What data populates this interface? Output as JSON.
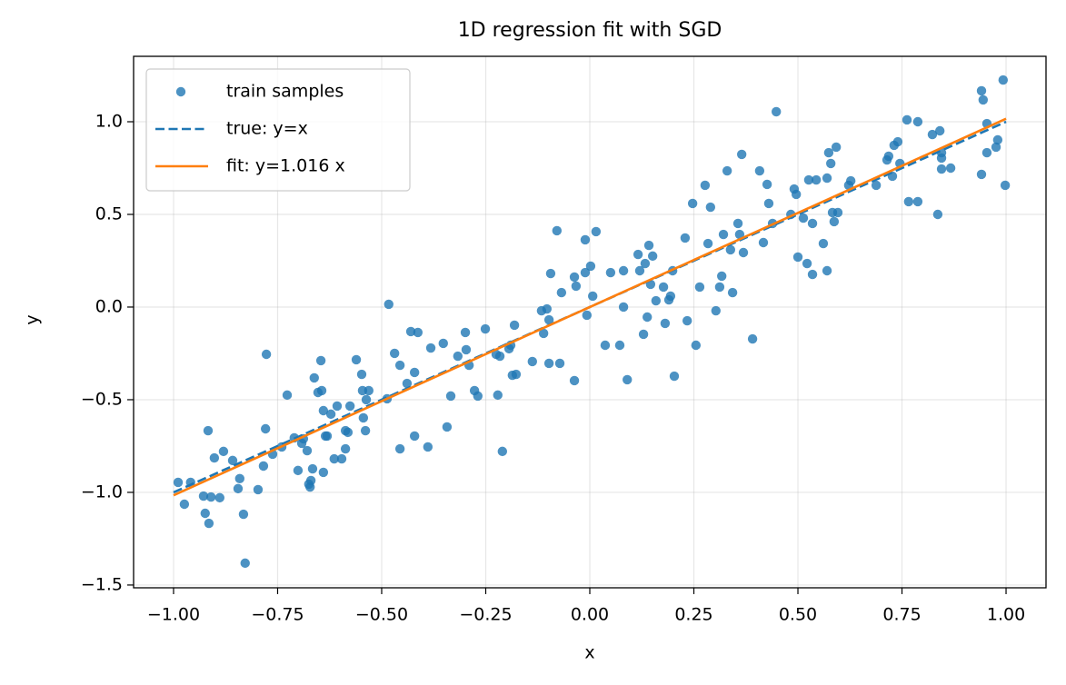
{
  "chart_data": {
    "type": "scatter",
    "title": "1D regression fit with SGD",
    "x_label": "x",
    "y_label": "y",
    "xlim": [
      -1.096,
      1.096
    ],
    "ylim": [
      -1.515,
      1.353
    ],
    "xticks": [
      {
        "value": -1,
        "label": "−1.00"
      },
      {
        "value": -0.75,
        "label": "−0.75"
      },
      {
        "value": -0.5,
        "label": "−0.50"
      },
      {
        "value": -0.25,
        "label": "−0.25"
      },
      {
        "value": 0,
        "label": "0.00"
      },
      {
        "value": 0.25,
        "label": "0.25"
      },
      {
        "value": 0.5,
        "label": "0.50"
      },
      {
        "value": 0.75,
        "label": "0.75"
      },
      {
        "value": 1,
        "label": "1.00"
      }
    ],
    "yticks": [
      {
        "value": -1.5,
        "label": "−1.5"
      },
      {
        "value": -1,
        "label": "−1.0"
      },
      {
        "value": -0.5,
        "label": "−0.5"
      },
      {
        "value": 0,
        "label": "0.0"
      },
      0.5,
      {
        "value": 1,
        "label": "1.0"
      }
    ],
    "grid": true,
    "legend": "upper left",
    "series": [
      {
        "name": "train samples",
        "type": "scatter",
        "color": "#1f77b4",
        "x": [
          -0.989,
          -0.974,
          -0.959,
          -0.928,
          -0.917,
          -0.924,
          -0.915,
          -0.91,
          -0.902,
          -0.889,
          -0.88,
          -0.858,
          -0.845,
          -0.841,
          -0.832,
          -0.828,
          -0.797,
          -0.784,
          -0.779,
          -0.777,
          -0.762,
          -0.74,
          -0.727,
          -0.71,
          -0.701,
          -0.692,
          -0.688,
          -0.679,
          -0.675,
          -0.67,
          -0.672,
          -0.666,
          -0.662,
          -0.653,
          -0.646,
          -0.644,
          -0.64,
          -0.64,
          -0.635,
          -0.631,
          -0.622,
          -0.614,
          -0.607,
          -0.596,
          -0.587,
          -0.587,
          -0.581,
          -0.576,
          -0.561,
          -0.548,
          -0.546,
          -0.539,
          -0.544,
          -0.537,
          -0.531,
          -0.487,
          -0.483,
          -0.469,
          -0.456,
          -0.456,
          -0.439,
          -0.43,
          -0.421,
          -0.421,
          -0.413,
          -0.389,
          -0.382,
          -0.352,
          -0.343,
          -0.334,
          -0.317,
          -0.299,
          -0.297,
          -0.29,
          -0.277,
          -0.269,
          -0.251,
          -0.225,
          -0.221,
          -0.216,
          -0.21,
          -0.194,
          -0.19,
          -0.186,
          -0.181,
          -0.177,
          -0.138,
          -0.116,
          -0.111,
          -0.103,
          -0.098,
          -0.094,
          -0.098,
          -0.079,
          -0.072,
          -0.068,
          -0.037,
          -0.033,
          -0.037,
          -0.011,
          -0.011,
          -0.007,
          0.002,
          0.007,
          0.015,
          0.037,
          0.05,
          0.072,
          0.081,
          0.081,
          0.09,
          0.116,
          0.12,
          0.129,
          0.133,
          0.138,
          0.142,
          0.146,
          0.151,
          0.159,
          0.177,
          0.181,
          0.19,
          0.194,
          0.199,
          0.203,
          0.229,
          0.234,
          0.247,
          0.255,
          0.264,
          0.277,
          0.284,
          0.29,
          0.303,
          0.312,
          0.317,
          0.321,
          0.33,
          0.338,
          0.343,
          0.356,
          0.36,
          0.365,
          0.369,
          0.391,
          0.408,
          0.417,
          0.426,
          0.43,
          0.439,
          0.448,
          0.483,
          0.491,
          0.496,
          0.5,
          0.513,
          0.522,
          0.526,
          0.535,
          0.535,
          0.544,
          0.561,
          0.57,
          0.57,
          0.574,
          0.579,
          0.583,
          0.587,
          0.596,
          0.592,
          0.622,
          0.627,
          0.688,
          0.714,
          0.718,
          0.727,
          0.731,
          0.74,
          0.745,
          0.762,
          0.766,
          0.788,
          0.788,
          0.836,
          0.823,
          0.841,
          0.845,
          0.845,
          0.845,
          0.867,
          0.941,
          0.941,
          0.945,
          0.954,
          0.954,
          0.976,
          0.98,
          0.993,
          0.998
        ],
        "values": [
          -0.946,
          -1.064,
          -0.946,
          -1.02,
          -0.667,
          -1.113,
          -1.167,
          -1.025,
          -0.814,
          -1.029,
          -0.779,
          -0.828,
          -0.98,
          -0.926,
          -1.118,
          -1.382,
          -0.985,
          -0.858,
          -0.657,
          -0.255,
          -0.794,
          -0.755,
          -0.475,
          -0.706,
          -0.882,
          -0.735,
          -0.711,
          -0.775,
          -0.956,
          -0.936,
          -0.971,
          -0.873,
          -0.382,
          -0.461,
          -0.289,
          -0.451,
          -0.892,
          -0.559,
          -0.696,
          -0.696,
          -0.578,
          -0.819,
          -0.534,
          -0.819,
          -0.765,
          -0.667,
          -0.676,
          -0.534,
          -0.284,
          -0.363,
          -0.451,
          -0.667,
          -0.598,
          -0.5,
          -0.451,
          -0.495,
          0.015,
          -0.25,
          -0.314,
          -0.765,
          -0.412,
          -0.132,
          -0.696,
          -0.353,
          -0.137,
          -0.755,
          -0.221,
          -0.196,
          -0.647,
          -0.48,
          -0.265,
          -0.137,
          -0.23,
          -0.314,
          -0.451,
          -0.48,
          -0.118,
          -0.255,
          -0.475,
          -0.265,
          -0.779,
          -0.225,
          -0.206,
          -0.368,
          -0.098,
          -0.363,
          -0.294,
          -0.02,
          -0.142,
          -0.01,
          -0.304,
          0.181,
          -0.069,
          0.412,
          -0.304,
          0.078,
          -0.397,
          0.113,
          0.162,
          0.186,
          0.363,
          -0.044,
          0.221,
          0.059,
          0.407,
          -0.206,
          0.186,
          -0.206,
          0.196,
          0,
          -0.392,
          0.284,
          0.196,
          -0.147,
          0.235,
          -0.054,
          0.333,
          0.123,
          0.275,
          0.034,
          0.108,
          -0.088,
          0.039,
          0.059,
          0.196,
          -0.373,
          0.373,
          -0.074,
          0.559,
          -0.206,
          0.108,
          0.657,
          0.343,
          0.539,
          -0.02,
          0.108,
          0.167,
          0.392,
          0.735,
          0.309,
          0.078,
          0.451,
          0.392,
          0.824,
          0.294,
          -0.172,
          0.735,
          0.348,
          0.662,
          0.559,
          0.451,
          1.054,
          0.5,
          0.637,
          0.608,
          0.27,
          0.48,
          0.235,
          0.686,
          0.451,
          0.176,
          0.686,
          0.343,
          0.196,
          0.696,
          0.833,
          0.775,
          0.51,
          0.461,
          0.51,
          0.863,
          0.657,
          0.681,
          0.657,
          0.794,
          0.814,
          0.706,
          0.873,
          0.892,
          0.775,
          1.01,
          0.569,
          1.0,
          0.569,
          0.5,
          0.931,
          0.951,
          0.833,
          0.804,
          0.745,
          0.75,
          0.716,
          1.167,
          1.118,
          0.99,
          0.833,
          0.863,
          0.902,
          1.225,
          0.657
        ]
      },
      {
        "name": "true: y=x",
        "type": "line",
        "style": "dashed",
        "color": "#1f77b4",
        "x": [
          -1,
          1
        ],
        "values": [
          -1,
          1
        ]
      },
      {
        "name": "fit: y=1.016 x",
        "type": "line",
        "color": "#ff7f0e",
        "x": [
          -1,
          1
        ],
        "values": [
          -1.016,
          1.016
        ]
      }
    ]
  }
}
